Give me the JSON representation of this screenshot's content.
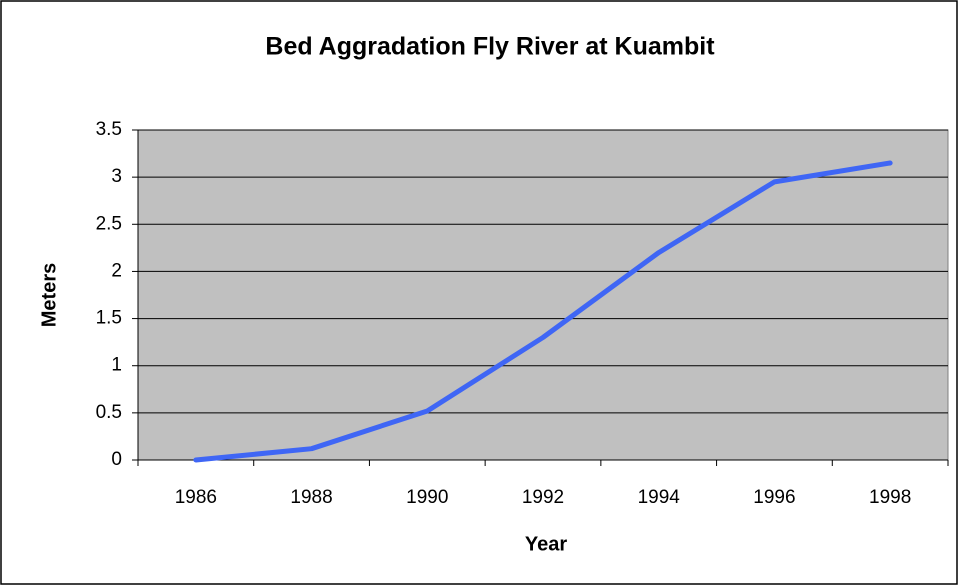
{
  "chart_data": {
    "type": "line",
    "title": "Bed Aggradation Fly River at Kuambit",
    "x_label": "Year",
    "y_label": "Meters",
    "categories": [
      "1986",
      "1988",
      "1990",
      "1992",
      "1994",
      "1996",
      "1998"
    ],
    "series": [
      {
        "name": "Bed Aggradation",
        "color": "#3f66f5",
        "values": [
          0,
          0.12,
          0.52,
          1.3,
          2.2,
          2.95,
          3.15
        ]
      }
    ],
    "ylim": [
      0,
      3.5
    ],
    "yticks": [
      0,
      0.5,
      1,
      1.5,
      2,
      2.5,
      3,
      3.5
    ],
    "grid": true
  }
}
